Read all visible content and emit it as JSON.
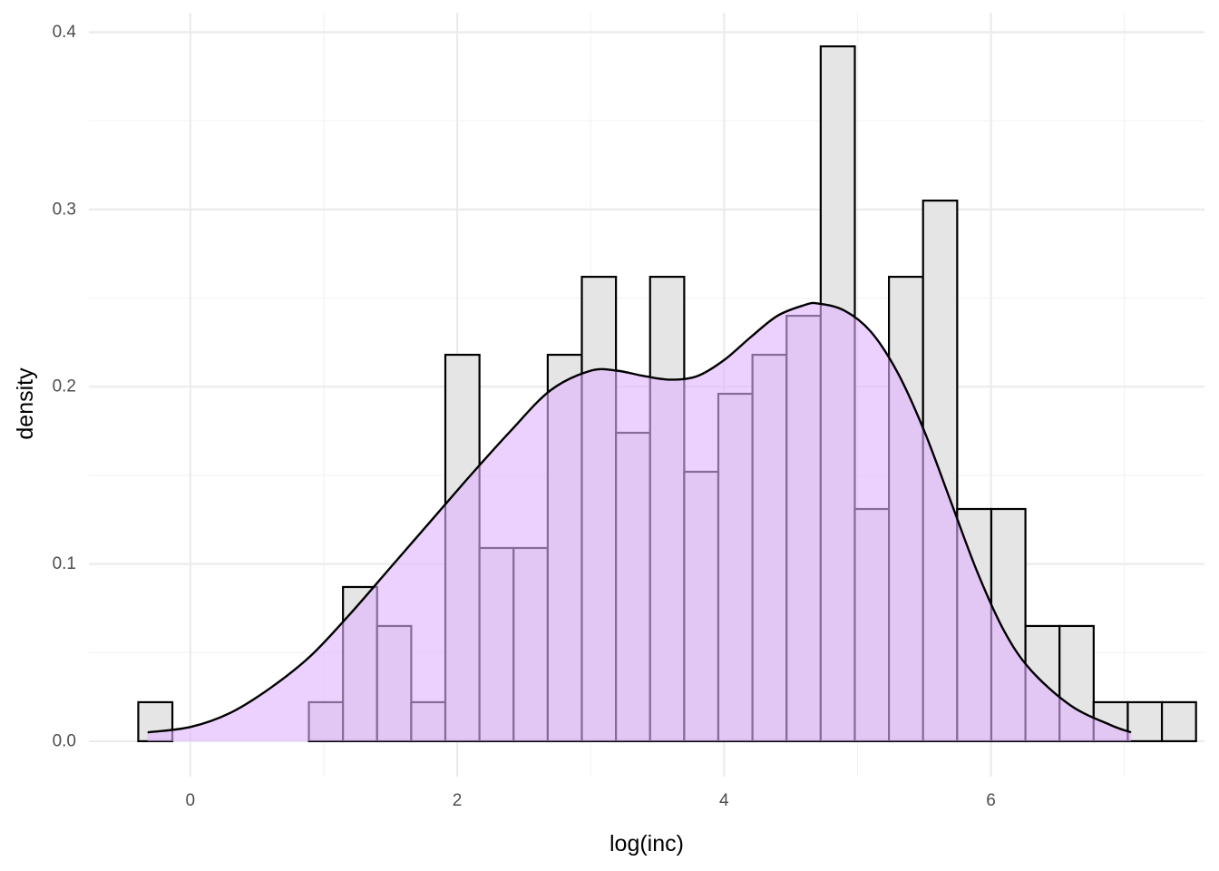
{
  "chart_data": {
    "type": "bar",
    "overlay": "density",
    "xlabel": "log(inc)",
    "ylabel": "density",
    "xlim": [
      -0.76,
      7.6
    ],
    "ylim": [
      -0.02,
      0.411
    ],
    "x_ticks": [
      0,
      2,
      4,
      6
    ],
    "y_ticks": [
      0.0,
      0.1,
      0.2,
      0.3,
      0.4
    ],
    "y_tick_labels": [
      "0.0",
      "0.1",
      "0.2",
      "0.3",
      "0.4"
    ],
    "grid": true,
    "colors": {
      "bar_fill": "#e5e5e5",
      "bar_outline": "#000000",
      "density_fill": "#e0b3ff",
      "density_line": "#000000",
      "grid_major": "#ebebeb",
      "grid_minor": "#f3f3f3"
    },
    "bins": {
      "start": -0.39,
      "width": 0.2557,
      "values": [
        0.022,
        0,
        0,
        0,
        0,
        0.022,
        0.087,
        0.065,
        0.022,
        0.218,
        0.109,
        0.109,
        0.218,
        0.262,
        0.174,
        0.262,
        0.152,
        0.196,
        0.218,
        0.24,
        0.392,
        0.131,
        0.262,
        0.305,
        0.131,
        0.131,
        0.065,
        0.065,
        0.022,
        0.022,
        0.022
      ]
    },
    "density_curve": {
      "x": [
        -0.32,
        0.0,
        0.3,
        0.6,
        0.9,
        1.2,
        1.5,
        1.8,
        2.1,
        2.4,
        2.7,
        3.0,
        3.2,
        3.4,
        3.6,
        3.8,
        4.0,
        4.2,
        4.4,
        4.6,
        4.7,
        4.9,
        5.1,
        5.3,
        5.5,
        5.7,
        5.9,
        6.1,
        6.3,
        6.6,
        6.9,
        7.05
      ],
      "y": [
        0.005,
        0.008,
        0.016,
        0.03,
        0.048,
        0.072,
        0.098,
        0.124,
        0.15,
        0.175,
        0.198,
        0.209,
        0.209,
        0.206,
        0.204,
        0.206,
        0.215,
        0.228,
        0.24,
        0.246,
        0.247,
        0.243,
        0.231,
        0.208,
        0.175,
        0.135,
        0.095,
        0.062,
        0.04,
        0.02,
        0.009,
        0.005
      ]
    }
  }
}
